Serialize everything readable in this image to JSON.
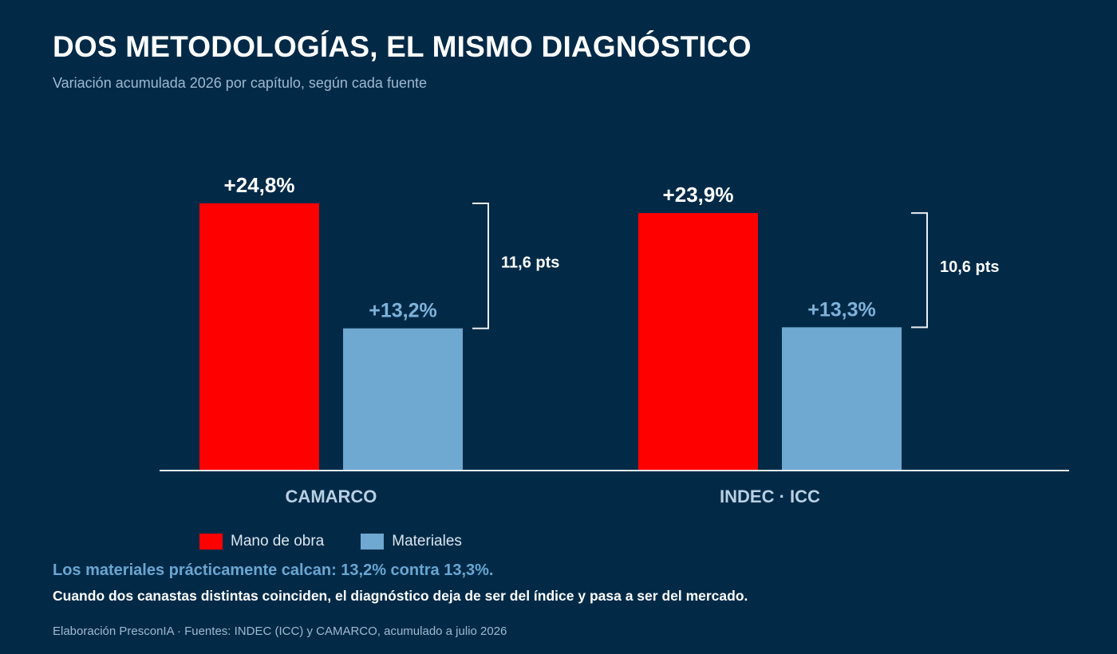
{
  "header": {
    "title": "DOS METODOLOGÍAS, EL MISMO DIAGNÓSTICO",
    "subtitle": "Variación acumulada 2026 por capítulo, según cada fuente"
  },
  "colors": {
    "background": "#022a47",
    "labor": "#ff0000",
    "materials": "#6fa8d0",
    "axis": "#e8eef4",
    "category_label": "#b9cfe3",
    "materials_label": "#7fb2d9",
    "text": "#ffffff"
  },
  "chart_data": {
    "type": "bar",
    "categories": [
      "CAMARCO",
      "INDEC · ICC"
    ],
    "series": [
      {
        "name": "Mano de obra",
        "values": [
          24.8,
          23.9
        ],
        "labels": [
          "+24,8%",
          "+23,9%"
        ]
      },
      {
        "name": "Materiales",
        "values": [
          13.2,
          13.3
        ],
        "labels": [
          "+13,2%",
          "+13,3%"
        ]
      }
    ],
    "gaps": [
      "11,6 pts",
      "10,6 pts"
    ],
    "ylim": [
      0,
      30
    ],
    "legend_placement": "bottom-left",
    "grid": false
  },
  "footer": {
    "takeaway": "Los materiales prácticamente calcan: 13,2% contra 13,3%.",
    "note": "Cuando dos canastas distintas coinciden, el diagnóstico deja de ser del índice y pasa a ser del mercado.",
    "source": "Elaboración PresconIA · Fuentes: INDEC (ICC) y CAMARCO, acumulado a julio 2026"
  }
}
